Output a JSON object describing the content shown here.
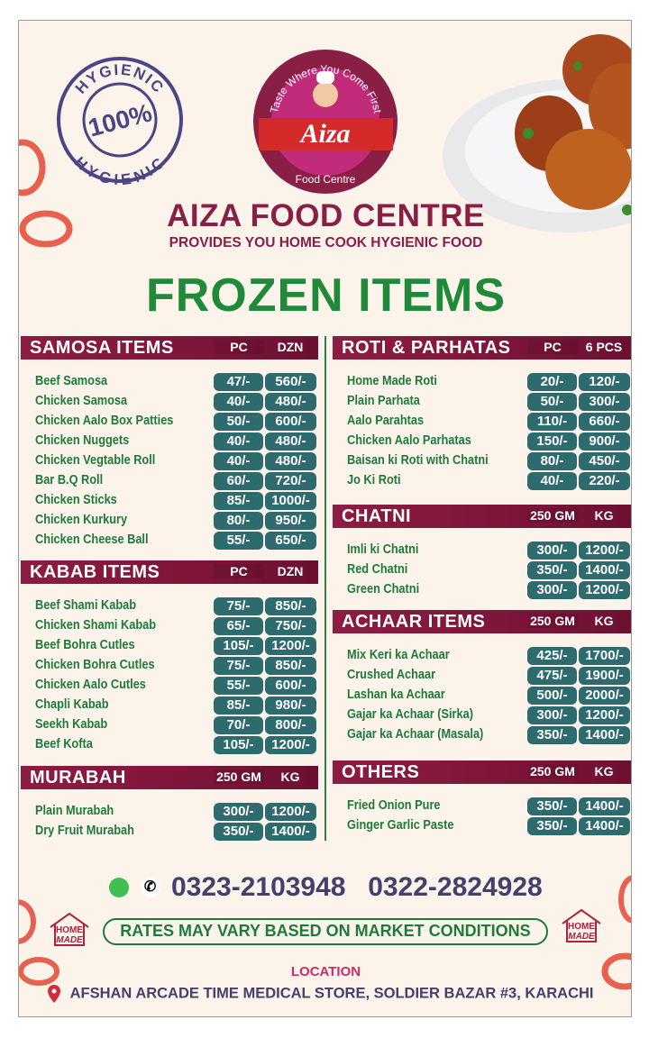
{
  "logo": {
    "arc_top": "Taste Where You Come First",
    "script_name": "Aiza",
    "arc_bottom": "Food Centre"
  },
  "stamp": {
    "top": "HYGIENIC",
    "center": "100%",
    "bottom": "HYGIENIC"
  },
  "header": {
    "brand": "AIZA FOOD CENTRE",
    "tagline": "PROVIDES YOU HOME COOK HYGIENIC FOOD",
    "title": "FROZEN ITEMS"
  },
  "colors": {
    "maroon": "#8a1f45",
    "green": "#1e7a3a",
    "price_pill": "#2d6b6e",
    "background": "#fcf4ea",
    "phone": "#44406e"
  },
  "sections": [
    {
      "id": "samosa",
      "title": "SAMOSA ITEMS",
      "cols": [
        "PC",
        "DZN"
      ],
      "items": [
        {
          "name": "Beef Samosa",
          "p1": "47/-",
          "p2": "560/-"
        },
        {
          "name": "Chicken Samosa",
          "p1": "40/-",
          "p2": "480/-"
        },
        {
          "name": "Chicken Aalo Box Patties",
          "p1": "50/-",
          "p2": "600/-"
        },
        {
          "name": "Chicken Nuggets",
          "p1": "40/-",
          "p2": "480/-"
        },
        {
          "name": "Chicken Vegtable Roll",
          "p1": "40/-",
          "p2": "480/-"
        },
        {
          "name": "Bar B.Q Roll",
          "p1": "60/-",
          "p2": "720/-"
        },
        {
          "name": "Chicken Sticks",
          "p1": "85/-",
          "p2": "1000/-"
        },
        {
          "name": "Chicken Kurkury",
          "p1": "80/-",
          "p2": "950/-"
        },
        {
          "name": "Chicken Cheese Ball",
          "p1": "55/-",
          "p2": "650/-"
        }
      ]
    },
    {
      "id": "kabab",
      "title": "KABAB ITEMS",
      "cols": [
        "PC",
        "DZN"
      ],
      "items": [
        {
          "name": "Beef Shami Kabab",
          "p1": "75/-",
          "p2": "850/-"
        },
        {
          "name": "Chicken Shami Kabab",
          "p1": "65/-",
          "p2": "750/-"
        },
        {
          "name": "Beef Bohra Cutles",
          "p1": "105/-",
          "p2": "1200/-"
        },
        {
          "name": "Chicken Bohra Cutles",
          "p1": "75/-",
          "p2": "850/-"
        },
        {
          "name": "Chicken Aalo Cutles",
          "p1": "55/-",
          "p2": "600/-"
        },
        {
          "name": "Chapli Kabab",
          "p1": "85/-",
          "p2": "980/-"
        },
        {
          "name": "Seekh Kabab",
          "p1": "70/-",
          "p2": "800/-"
        },
        {
          "name": "Beef Kofta",
          "p1": "105/-",
          "p2": "1200/-"
        }
      ]
    },
    {
      "id": "murabah",
      "title": "MURABAH",
      "cols": [
        "250 GM",
        "KG"
      ],
      "items": [
        {
          "name": "Plain Murabah",
          "p1": "300/-",
          "p2": "1200/-"
        },
        {
          "name": "Dry Fruit Murabah",
          "p1": "350/-",
          "p2": "1400/-"
        }
      ]
    },
    {
      "id": "roti",
      "title": "ROTI & PARHATAS",
      "cols": [
        "PC",
        "6 PCS"
      ],
      "items": [
        {
          "name": "Home Made Roti",
          "p1": "20/-",
          "p2": "120/-"
        },
        {
          "name": "Plain Parhata",
          "p1": "50/-",
          "p2": "300/-"
        },
        {
          "name": "Aalo Parahtas",
          "p1": "110/-",
          "p2": "660/-"
        },
        {
          "name": "Chicken Aalo Parhatas",
          "p1": "150/-",
          "p2": "900/-"
        },
        {
          "name": "Baisan ki Roti with Chatni",
          "p1": "80/-",
          "p2": "450/-"
        },
        {
          "name": "Jo Ki Roti",
          "p1": "40/-",
          "p2": "220/-"
        }
      ]
    },
    {
      "id": "chatni",
      "title": "CHATNI",
      "cols": [
        "250 GM",
        "KG"
      ],
      "items": [
        {
          "name": "Imli ki Chatni",
          "p1": "300/-",
          "p2": "1200/-"
        },
        {
          "name": "Red Chatni",
          "p1": "350/-",
          "p2": "1400/-"
        },
        {
          "name": "Green Chatni",
          "p1": "300/-",
          "p2": "1200/-"
        }
      ]
    },
    {
      "id": "achaar",
      "title": "ACHAAR ITEMS",
      "cols": [
        "250 GM",
        "KG"
      ],
      "items": [
        {
          "name": "Mix Keri ka Achaar",
          "p1": "425/-",
          "p2": "1700/-"
        },
        {
          "name": "Crushed Achaar",
          "p1": "475/-",
          "p2": "1900/-"
        },
        {
          "name": "Lashan ka Achaar",
          "p1": "500/-",
          "p2": "2000/-"
        },
        {
          "name": "Gajar ka Achaar (Sirka)",
          "p1": "300/-",
          "p2": "1200/-"
        },
        {
          "name": "Gajar ka Achaar (Masala)",
          "p1": "350/-",
          "p2": "1400/-"
        }
      ]
    },
    {
      "id": "others",
      "title": "OTHERS",
      "cols": [
        "250 GM",
        "KG"
      ],
      "items": [
        {
          "name": "Fried Onion Pure",
          "p1": "350/-",
          "p2": "1400/-"
        },
        {
          "name": "Ginger Garlic Paste",
          "p1": "350/-",
          "p2": "1400/-"
        }
      ]
    }
  ],
  "contact": {
    "phone1": "0323-2103948",
    "phone2": "0322-2824928",
    "icons": [
      "whatsapp-icon",
      "phone-icon"
    ]
  },
  "notice": "RATES MAY VARY BASED ON MARKET CONDITIONS",
  "badge": {
    "line1": "HOME",
    "line2": "MADE"
  },
  "location": {
    "label": "LOCATION",
    "address": "AFSHAN ARCADE TIME MEDICAL STORE, SOLDIER BAZAR #3, KARACHI"
  }
}
